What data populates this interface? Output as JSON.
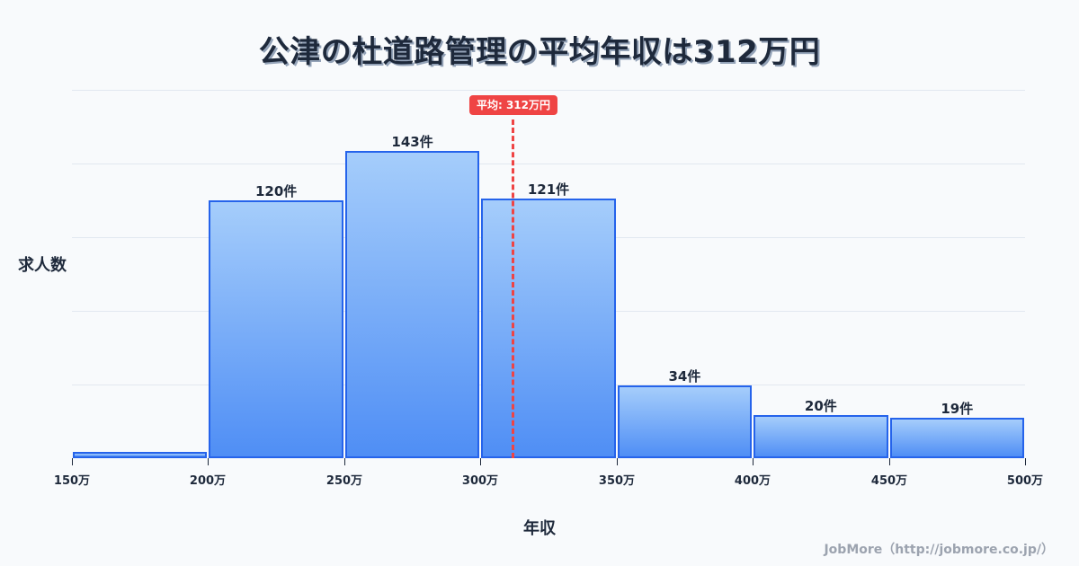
{
  "title": "公津の杜道路管理の平均年収は312万円",
  "mean_badge": "平均: 312万円",
  "ylabel": "求人数",
  "xlabel": "年収",
  "footer": "JobMore（http://jobmore.co.jp/）",
  "colors": {
    "bar_border": "#2563eb",
    "bar_top": "#a5cdfb",
    "bar_bottom": "#4f8ef5",
    "mean_line": "#ef4444",
    "text": "#1e293b",
    "grid": "#e2e8f0",
    "background": "#f8fafc"
  },
  "bars": [
    {
      "label": "",
      "value": 3
    },
    {
      "label": "120件",
      "value": 120
    },
    {
      "label": "143件",
      "value": 143
    },
    {
      "label": "121件",
      "value": 121
    },
    {
      "label": "34件",
      "value": 34
    },
    {
      "label": "20件",
      "value": 20
    },
    {
      "label": "19件",
      "value": 19
    }
  ],
  "ticks": [
    "150万",
    "200万",
    "250万",
    "300万",
    "350万",
    "400万",
    "450万",
    "500万"
  ],
  "chart_data": {
    "type": "bar",
    "title": "公津の杜道路管理の平均年収は312万円",
    "xlabel": "年収",
    "ylabel": "求人数",
    "categories": [
      "150-200万",
      "200-250万",
      "250-300万",
      "300-350万",
      "350-400万",
      "400-450万",
      "450-500万"
    ],
    "values": [
      3,
      120,
      143,
      121,
      34,
      20,
      19
    ],
    "bin_edges": [
      150,
      200,
      250,
      300,
      350,
      400,
      450,
      500
    ],
    "x_tick_labels": [
      "150万",
      "200万",
      "250万",
      "300万",
      "350万",
      "400万",
      "450万",
      "500万"
    ],
    "data_labels": [
      "",
      "120件",
      "143件",
      "121件",
      "34件",
      "20件",
      "19件"
    ],
    "annotations": [
      {
        "type": "vline",
        "x": 312,
        "label": "平均: 312万円",
        "style": "dashed",
        "color": "#ef4444"
      }
    ],
    "ylim": [
      0,
      171.6
    ],
    "xlim": [
      150,
      500
    ],
    "grid": true,
    "legend": null
  }
}
